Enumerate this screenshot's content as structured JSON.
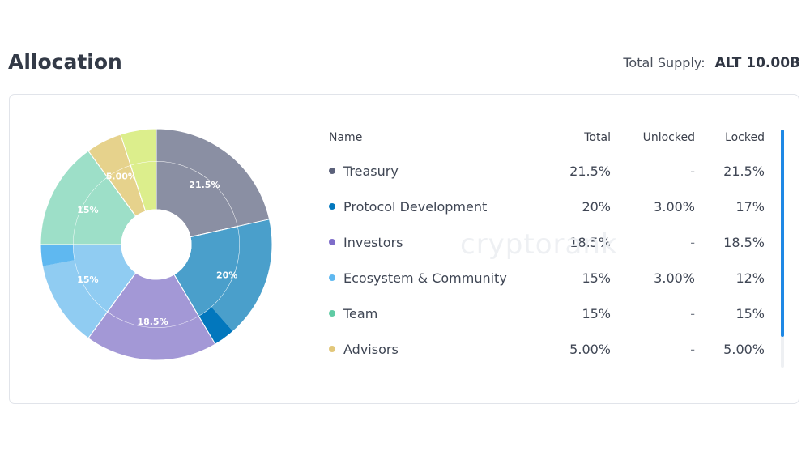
{
  "header": {
    "title": "Allocation",
    "supply_label": "Total Supply:",
    "supply_value": "ALT 10.00B"
  },
  "watermark": "cryptorank",
  "table": {
    "columns": [
      "Name",
      "Total",
      "Unlocked",
      "Locked"
    ],
    "rows": [
      {
        "name": "Treasury",
        "total": "21.5%",
        "unlocked": "-",
        "locked": "21.5%",
        "color": "#5b617a"
      },
      {
        "name": "Protocol Development",
        "total": "20%",
        "unlocked": "3.00%",
        "locked": "17%",
        "color": "#0277bd"
      },
      {
        "name": "Investors",
        "total": "18.5%",
        "unlocked": "-",
        "locked": "18.5%",
        "color": "#7e6cc9"
      },
      {
        "name": "Ecosystem & Community",
        "total": "15%",
        "unlocked": "3.00%",
        "locked": "12%",
        "color": "#5fb8f0"
      },
      {
        "name": "Team",
        "total": "15%",
        "unlocked": "-",
        "locked": "15%",
        "color": "#5fcba4"
      },
      {
        "name": "Advisors",
        "total": "5.00%",
        "unlocked": "-",
        "locked": "5.00%",
        "color": "#e2c77a"
      }
    ]
  },
  "chart_data": {
    "type": "pie",
    "donut": true,
    "start_angle_deg": 0,
    "slices": [
      {
        "label": "21.5%",
        "value": 21.5,
        "color": "#8a8fa3",
        "unlocked_color": "#8a8fa3",
        "unlocked": 0
      },
      {
        "label": "20%",
        "value": 20,
        "color": "#4a9fcb",
        "unlocked_color": "#0277bd",
        "unlocked": 3
      },
      {
        "label": "18.5%",
        "value": 18.5,
        "color": "#a398d6",
        "unlocked_color": "#a398d6",
        "unlocked": 0
      },
      {
        "label": "15%",
        "value": 15,
        "color": "#90ccf2",
        "unlocked_color": "#5fb8f0",
        "unlocked": 3
      },
      {
        "label": "15%",
        "value": 15,
        "color": "#9ddfc8",
        "unlocked_color": "#9ddfc8",
        "unlocked": 0
      },
      {
        "label": "5.00%",
        "value": 5,
        "color": "#e6d28c",
        "unlocked_color": "#e6d28c",
        "unlocked": 0
      },
      {
        "label": "",
        "value": 5,
        "color": "#dcee8c",
        "unlocked_color": "#dcee8c",
        "unlocked": 0
      }
    ]
  }
}
